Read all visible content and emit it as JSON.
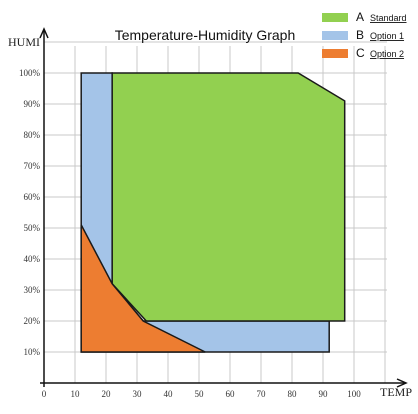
{
  "chart_data": {
    "type": "area",
    "title": "Temperature-Humidity Graph",
    "xlabel": "TEMP",
    "ylabel": "HUMI",
    "xlim": [
      0,
      110
    ],
    "ylim": [
      0,
      110
    ],
    "grid": true,
    "x_ticks": [
      "0",
      "10",
      "20",
      "30",
      "40",
      "50",
      "60",
      "70",
      "80",
      "90",
      "100"
    ],
    "y_ticks": [
      "10%",
      "20%",
      "30%",
      "40%",
      "50%",
      "60%",
      "70%",
      "80%",
      "90%",
      "100%"
    ],
    "legend_position": "top-right",
    "series": [
      {
        "letter": "B",
        "name": "Option 1",
        "color": "#a4c4e8",
        "points": [
          [
            12,
            100
          ],
          [
            22,
            100
          ],
          [
            22,
            32
          ],
          [
            32,
            20
          ],
          [
            92,
            20
          ],
          [
            92,
            10
          ],
          [
            12,
            10
          ]
        ]
      },
      {
        "letter": "A",
        "name": "Standard",
        "color": "#92d050",
        "points": [
          [
            22,
            100
          ],
          [
            82,
            100
          ],
          [
            97,
            91
          ],
          [
            97,
            20
          ],
          [
            33,
            20
          ],
          [
            22,
            32
          ]
        ]
      },
      {
        "letter": "C",
        "name": "Option 2",
        "color": "#ed7d31",
        "points": [
          [
            12,
            51
          ],
          [
            22,
            32
          ],
          [
            32,
            20
          ],
          [
            52,
            10
          ],
          [
            12,
            10
          ]
        ]
      }
    ]
  }
}
